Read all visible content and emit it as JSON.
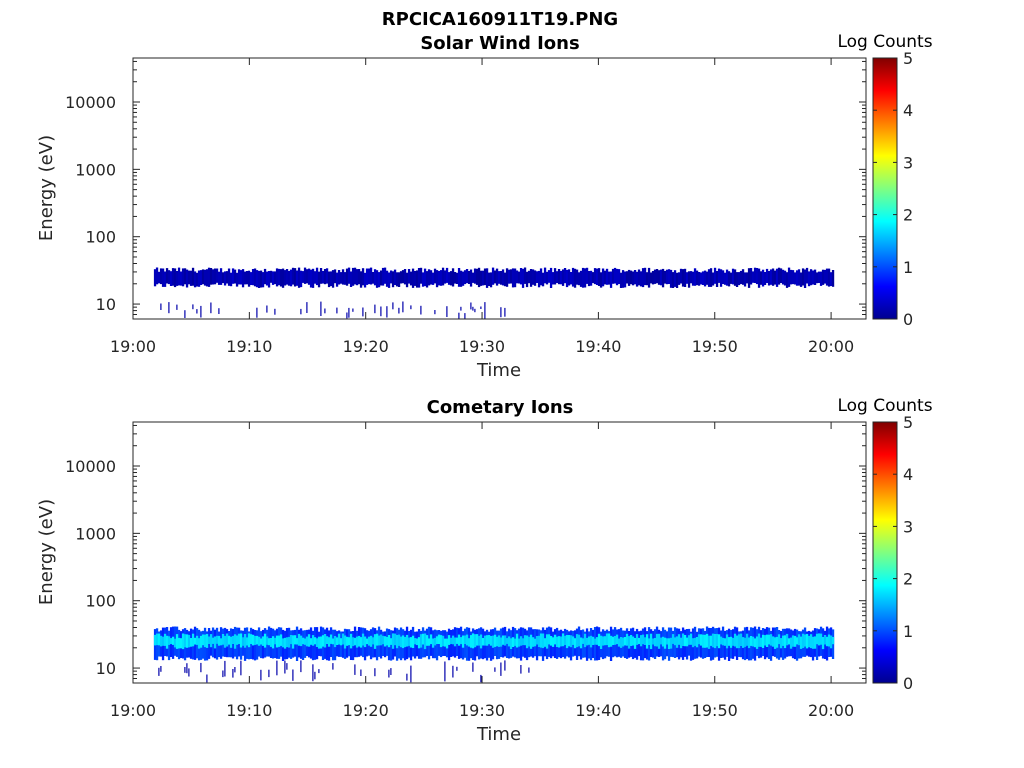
{
  "figure": {
    "main_title": "RPCICA160911T19.PNG"
  },
  "colormap": [
    "#00008f",
    "#0000ff",
    "#0080ff",
    "#00ffff",
    "#80ff80",
    "#ffff00",
    "#ff8000",
    "#ff0000",
    "#800000"
  ],
  "chart_data": [
    {
      "type": "heatmap",
      "title": "Solar Wind Ions",
      "xlabel": "Time",
      "ylabel": "Energy (eV)",
      "y_scale": "log",
      "xlim": [
        "19:00",
        "20:03"
      ],
      "ylim": [
        6,
        45000
      ],
      "x_ticks": [
        "19:00",
        "19:10",
        "19:20",
        "19:30",
        "19:40",
        "19:50",
        "20:00"
      ],
      "y_ticks": [
        10,
        100,
        1000,
        10000
      ],
      "y_tick_labels": [
        "10",
        "100",
        "1000",
        "10000"
      ],
      "colorbar": {
        "label": "Log Counts",
        "min": 0,
        "max": 5,
        "ticks": [
          "0",
          "1",
          "2",
          "3",
          "4",
          "5"
        ]
      },
      "data_start": "19:01.8",
      "data_end": "20:00.2",
      "bands": [
        {
          "e_low": 19,
          "e_high": 32,
          "log_counts": 0.2
        },
        {
          "e_low": 6,
          "e_high": 11,
          "log_counts": 0.15,
          "start": "19:02",
          "end": "19:32",
          "sparse": true
        }
      ]
    },
    {
      "type": "heatmap",
      "title": "Cometary Ions",
      "xlabel": "Time",
      "ylabel": "Energy (eV)",
      "y_scale": "log",
      "xlim": [
        "19:00",
        "20:03"
      ],
      "ylim": [
        6,
        45000
      ],
      "x_ticks": [
        "19:00",
        "19:10",
        "19:20",
        "19:30",
        "19:40",
        "19:50",
        "20:00"
      ],
      "y_ticks": [
        10,
        100,
        1000,
        10000
      ],
      "y_tick_labels": [
        "10",
        "100",
        "1000",
        "10000"
      ],
      "colorbar": {
        "label": "Log Counts",
        "min": 0,
        "max": 5,
        "ticks": [
          "0",
          "1",
          "2",
          "3",
          "4",
          "5"
        ]
      },
      "data_start": "19:01.8",
      "data_end": "20:00.2",
      "bands": [
        {
          "e_low": 14,
          "e_high": 38,
          "log_counts": 0.9
        },
        {
          "e_low": 21,
          "e_high": 30,
          "log_counts": 1.7
        },
        {
          "e_low": 6,
          "e_high": 13,
          "log_counts": 0.15,
          "start": "19:02",
          "end": "19:34",
          "sparse": true
        }
      ]
    }
  ]
}
